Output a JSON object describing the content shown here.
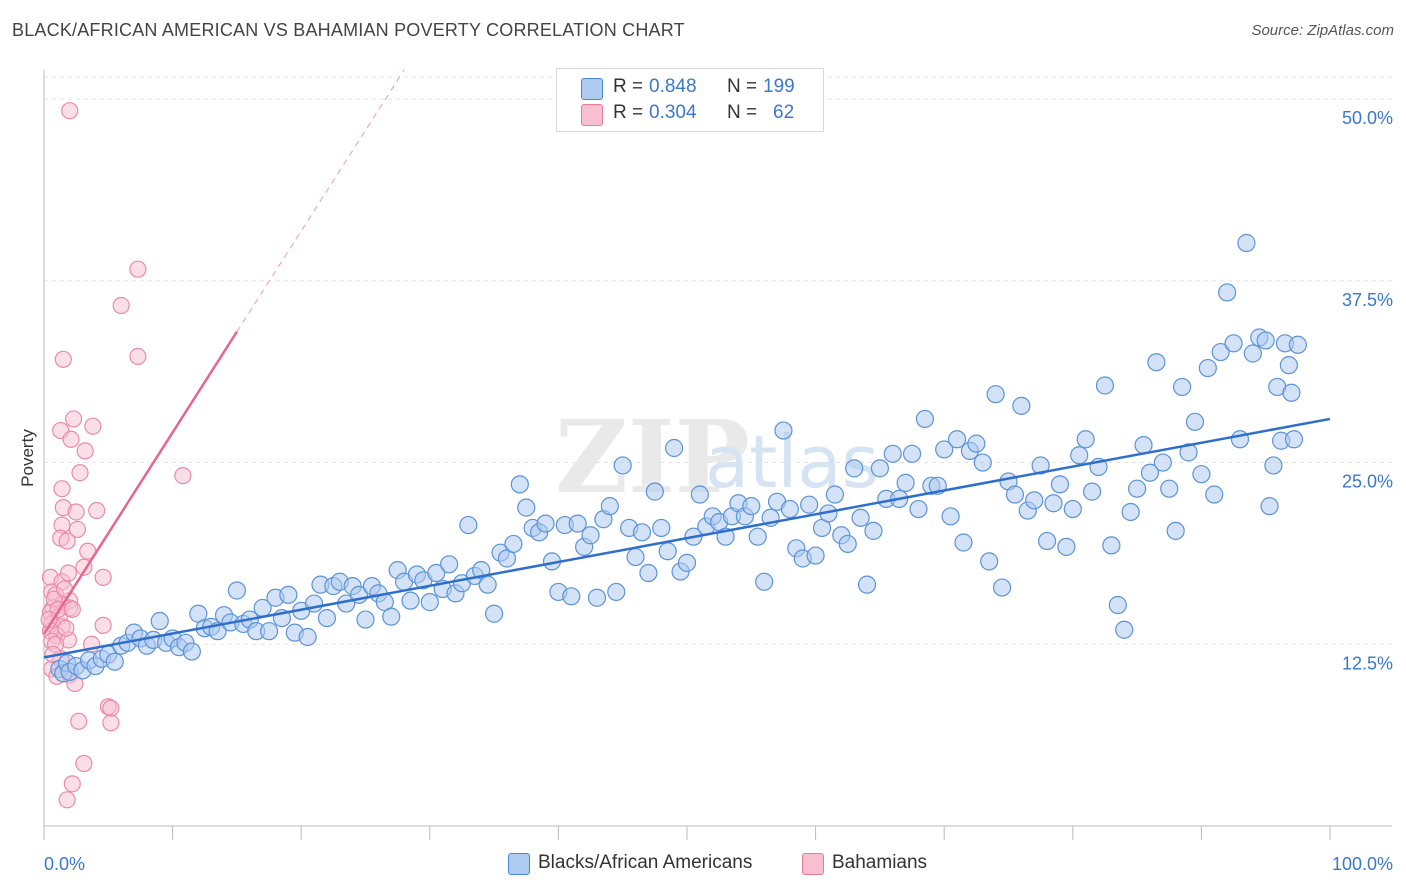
{
  "title": "BLACK/AFRICAN AMERICAN VS BAHAMIAN POVERTY CORRELATION CHART",
  "source": "Source: ZipAtlas.com",
  "watermark": {
    "zip": "ZIP",
    "atlas": "atlas"
  },
  "legend": {
    "r_label": "R =",
    "n_label": "N =",
    "series": [
      {
        "name": "Blacks/African Americans",
        "r": "0.848",
        "n": "199",
        "color": "#4a86d4",
        "fill": "#aecbf0"
      },
      {
        "name": "Bahamians",
        "r": "0.304",
        "n": "62",
        "color": "#e8799b",
        "fill": "#f7bfd0"
      }
    ]
  },
  "chart_data": {
    "type": "scatter",
    "title": "BLACK/AFRICAN AMERICAN VS BAHAMIAN POVERTY CORRELATION CHART",
    "xlabel": "",
    "ylabel": "Poverty",
    "xlim": [
      0,
      100
    ],
    "ylim": [
      0,
      52
    ],
    "x_tick_labels": [
      "0.0%",
      "100.0%"
    ],
    "y_ticks": [
      12.5,
      25.0,
      37.5,
      50.0
    ],
    "y_tick_labels": [
      "12.5%",
      "25.0%",
      "37.5%",
      "50.0%"
    ],
    "grid": true,
    "series": [
      {
        "name": "Blacks/African Americans",
        "trend": {
          "x0": 0,
          "y0": 11.6,
          "x1": 100,
          "y1": 28.0
        },
        "points": [
          [
            1.2,
            10.8
          ],
          [
            1.5,
            10.5
          ],
          [
            1.8,
            11.2
          ],
          [
            2.0,
            10.6
          ],
          [
            2.5,
            11.0
          ],
          [
            3.0,
            10.7
          ],
          [
            3.5,
            11.4
          ],
          [
            4.0,
            11.0
          ],
          [
            4.5,
            11.5
          ],
          [
            5.0,
            11.8
          ],
          [
            5.5,
            11.3
          ],
          [
            6.0,
            12.4
          ],
          [
            6.5,
            12.6
          ],
          [
            7.0,
            13.3
          ],
          [
            7.5,
            12.9
          ],
          [
            8.0,
            12.4
          ],
          [
            8.5,
            12.8
          ],
          [
            9.0,
            14.1
          ],
          [
            9.5,
            12.6
          ],
          [
            10.0,
            12.9
          ],
          [
            10.5,
            12.3
          ],
          [
            11.0,
            12.6
          ],
          [
            11.5,
            12.0
          ],
          [
            12.0,
            14.6
          ],
          [
            12.5,
            13.6
          ],
          [
            13.0,
            13.7
          ],
          [
            13.5,
            13.4
          ],
          [
            14.0,
            14.5
          ],
          [
            14.5,
            14.0
          ],
          [
            15.0,
            16.2
          ],
          [
            15.5,
            13.9
          ],
          [
            16.0,
            14.2
          ],
          [
            16.5,
            13.4
          ],
          [
            17.0,
            15.0
          ],
          [
            17.5,
            13.4
          ],
          [
            18.0,
            15.7
          ],
          [
            18.5,
            14.3
          ],
          [
            19.0,
            15.9
          ],
          [
            19.5,
            13.3
          ],
          [
            20.0,
            14.8
          ],
          [
            20.5,
            13.0
          ],
          [
            21.0,
            15.3
          ],
          [
            21.5,
            16.6
          ],
          [
            22.0,
            14.3
          ],
          [
            22.5,
            16.5
          ],
          [
            23.0,
            16.8
          ],
          [
            23.5,
            15.3
          ],
          [
            24.0,
            16.5
          ],
          [
            24.5,
            15.9
          ],
          [
            25.0,
            14.2
          ],
          [
            25.5,
            16.5
          ],
          [
            26.0,
            16.0
          ],
          [
            26.5,
            15.4
          ],
          [
            27.0,
            14.4
          ],
          [
            27.5,
            17.6
          ],
          [
            28.0,
            16.8
          ],
          [
            28.5,
            15.5
          ],
          [
            29.0,
            17.3
          ],
          [
            29.5,
            16.9
          ],
          [
            30.0,
            15.4
          ],
          [
            30.5,
            17.4
          ],
          [
            31.0,
            16.3
          ],
          [
            31.5,
            18.0
          ],
          [
            32.0,
            16.0
          ],
          [
            32.5,
            16.7
          ],
          [
            33.0,
            20.7
          ],
          [
            33.5,
            17.2
          ],
          [
            34.0,
            17.6
          ],
          [
            34.5,
            16.6
          ],
          [
            35.0,
            14.6
          ],
          [
            35.5,
            18.8
          ],
          [
            36.0,
            18.4
          ],
          [
            36.5,
            19.4
          ],
          [
            37.0,
            23.5
          ],
          [
            37.5,
            21.9
          ],
          [
            38.0,
            20.5
          ],
          [
            38.5,
            20.2
          ],
          [
            39.0,
            20.8
          ],
          [
            39.5,
            18.2
          ],
          [
            40.0,
            16.1
          ],
          [
            40.5,
            20.7
          ],
          [
            41.0,
            15.8
          ],
          [
            41.5,
            20.8
          ],
          [
            42.0,
            19.2
          ],
          [
            42.5,
            20.0
          ],
          [
            43.0,
            15.7
          ],
          [
            43.5,
            21.1
          ],
          [
            44.0,
            22.0
          ],
          [
            44.5,
            16.1
          ],
          [
            45.0,
            24.8
          ],
          [
            45.5,
            20.5
          ],
          [
            46.0,
            18.5
          ],
          [
            46.5,
            20.2
          ],
          [
            47.0,
            17.4
          ],
          [
            47.5,
            23.0
          ],
          [
            48.0,
            20.5
          ],
          [
            48.5,
            18.9
          ],
          [
            49.0,
            26.0
          ],
          [
            49.5,
            17.5
          ],
          [
            50.0,
            18.1
          ],
          [
            50.5,
            19.9
          ],
          [
            51.0,
            22.8
          ],
          [
            51.5,
            20.6
          ],
          [
            52.0,
            21.3
          ],
          [
            52.5,
            20.9
          ],
          [
            53.0,
            19.9
          ],
          [
            53.5,
            21.3
          ],
          [
            54.0,
            22.2
          ],
          [
            54.5,
            21.3
          ],
          [
            55.0,
            22.0
          ],
          [
            55.5,
            19.9
          ],
          [
            56.0,
            16.8
          ],
          [
            56.5,
            21.2
          ],
          [
            57.0,
            22.3
          ],
          [
            57.5,
            27.2
          ],
          [
            58.0,
            21.8
          ],
          [
            58.5,
            19.1
          ],
          [
            59.0,
            18.4
          ],
          [
            59.5,
            22.1
          ],
          [
            60.0,
            18.6
          ],
          [
            60.5,
            20.5
          ],
          [
            61.0,
            21.5
          ],
          [
            61.5,
            22.8
          ],
          [
            62.0,
            20.0
          ],
          [
            62.5,
            19.4
          ],
          [
            63.0,
            24.6
          ],
          [
            63.5,
            21.2
          ],
          [
            64.0,
            16.6
          ],
          [
            64.5,
            20.3
          ],
          [
            65.0,
            24.6
          ],
          [
            65.5,
            22.5
          ],
          [
            66.0,
            25.6
          ],
          [
            66.5,
            22.5
          ],
          [
            67.0,
            23.6
          ],
          [
            67.5,
            25.6
          ],
          [
            68.0,
            21.8
          ],
          [
            68.5,
            28.0
          ],
          [
            69.0,
            23.4
          ],
          [
            69.5,
            23.4
          ],
          [
            70.0,
            25.9
          ],
          [
            70.5,
            21.3
          ],
          [
            71.0,
            26.6
          ],
          [
            71.5,
            19.5
          ],
          [
            72.0,
            25.8
          ],
          [
            72.5,
            26.3
          ],
          [
            73.0,
            25.0
          ],
          [
            73.5,
            18.2
          ],
          [
            74.0,
            29.7
          ],
          [
            74.5,
            16.4
          ],
          [
            75.0,
            23.7
          ],
          [
            75.5,
            22.8
          ],
          [
            76.0,
            28.9
          ],
          [
            76.5,
            21.7
          ],
          [
            77.0,
            22.4
          ],
          [
            77.5,
            24.8
          ],
          [
            78.0,
            19.6
          ],
          [
            78.5,
            22.2
          ],
          [
            79.0,
            23.5
          ],
          [
            79.5,
            19.2
          ],
          [
            80.0,
            21.8
          ],
          [
            80.5,
            25.5
          ],
          [
            81.0,
            26.6
          ],
          [
            81.5,
            23.0
          ],
          [
            82.0,
            24.7
          ],
          [
            82.5,
            30.3
          ],
          [
            83.0,
            19.3
          ],
          [
            83.5,
            15.2
          ],
          [
            84.0,
            13.5
          ],
          [
            84.5,
            21.6
          ],
          [
            85.0,
            23.2
          ],
          [
            85.5,
            26.2
          ],
          [
            86.0,
            24.3
          ],
          [
            86.5,
            31.9
          ],
          [
            87.0,
            25.0
          ],
          [
            87.5,
            23.2
          ],
          [
            88.0,
            20.3
          ],
          [
            88.5,
            30.2
          ],
          [
            89.0,
            25.7
          ],
          [
            89.5,
            27.8
          ],
          [
            90.0,
            24.2
          ],
          [
            90.5,
            31.5
          ],
          [
            91.0,
            22.8
          ],
          [
            91.5,
            32.6
          ],
          [
            92.0,
            36.7
          ],
          [
            92.5,
            33.2
          ],
          [
            93.0,
            26.6
          ],
          [
            93.5,
            40.1
          ],
          [
            94.0,
            32.5
          ],
          [
            94.5,
            33.6
          ],
          [
            95.0,
            33.4
          ],
          [
            95.3,
            22.0
          ],
          [
            95.6,
            24.8
          ],
          [
            95.9,
            30.2
          ],
          [
            96.2,
            26.5
          ],
          [
            96.5,
            33.2
          ],
          [
            96.8,
            31.7
          ],
          [
            97.0,
            29.8
          ],
          [
            97.2,
            26.6
          ],
          [
            97.5,
            33.1
          ]
        ]
      },
      {
        "name": "Bahamians",
        "trend": {
          "x0": 0,
          "y0": 13.2,
          "x1": 15,
          "y1": 34.0
        },
        "trend_extension": {
          "x0": 15,
          "y0": 34.0,
          "x1": 28,
          "y1": 52.0
        },
        "points": [
          [
            2.0,
            49.2
          ],
          [
            7.3,
            38.3
          ],
          [
            6.0,
            35.8
          ],
          [
            1.5,
            32.1
          ],
          [
            7.3,
            32.3
          ],
          [
            2.3,
            28.0
          ],
          [
            3.8,
            27.5
          ],
          [
            1.3,
            27.2
          ],
          [
            2.1,
            26.6
          ],
          [
            3.2,
            25.8
          ],
          [
            2.8,
            24.3
          ],
          [
            10.8,
            24.1
          ],
          [
            1.4,
            23.2
          ],
          [
            1.5,
            21.9
          ],
          [
            4.1,
            21.7
          ],
          [
            2.5,
            21.6
          ],
          [
            1.4,
            20.7
          ],
          [
            2.6,
            20.4
          ],
          [
            1.3,
            19.8
          ],
          [
            1.8,
            19.6
          ],
          [
            3.4,
            18.9
          ],
          [
            3.1,
            17.8
          ],
          [
            4.6,
            17.1
          ],
          [
            0.5,
            17.1
          ],
          [
            1.4,
            16.8
          ],
          [
            0.6,
            16.1
          ],
          [
            0.9,
            15.9
          ],
          [
            2.0,
            15.5
          ],
          [
            1.4,
            15.2
          ],
          [
            0.7,
            15.0
          ],
          [
            2.0,
            15.0
          ],
          [
            0.5,
            14.7
          ],
          [
            1.2,
            14.4
          ],
          [
            0.6,
            13.9
          ],
          [
            1.4,
            13.7
          ],
          [
            4.6,
            13.8
          ],
          [
            0.5,
            13.4
          ],
          [
            1.0,
            13.1
          ],
          [
            1.9,
            12.8
          ],
          [
            0.6,
            12.7
          ],
          [
            3.7,
            12.5
          ],
          [
            0.6,
            10.8
          ],
          [
            2.0,
            10.4
          ],
          [
            1.0,
            10.3
          ],
          [
            2.4,
            9.8
          ],
          [
            5.0,
            8.2
          ],
          [
            5.2,
            8.1
          ],
          [
            2.7,
            7.2
          ],
          [
            5.2,
            7.1
          ],
          [
            3.1,
            4.3
          ],
          [
            2.2,
            2.9
          ],
          [
            1.8,
            1.8
          ],
          [
            0.8,
            15.6
          ],
          [
            1.1,
            14.9
          ],
          [
            1.6,
            16.3
          ],
          [
            0.4,
            14.2
          ],
          [
            2.2,
            14.9
          ],
          [
            1.7,
            13.6
          ],
          [
            0.9,
            12.5
          ],
          [
            1.3,
            11.5
          ],
          [
            0.7,
            11.8
          ],
          [
            1.9,
            17.4
          ]
        ]
      }
    ]
  }
}
